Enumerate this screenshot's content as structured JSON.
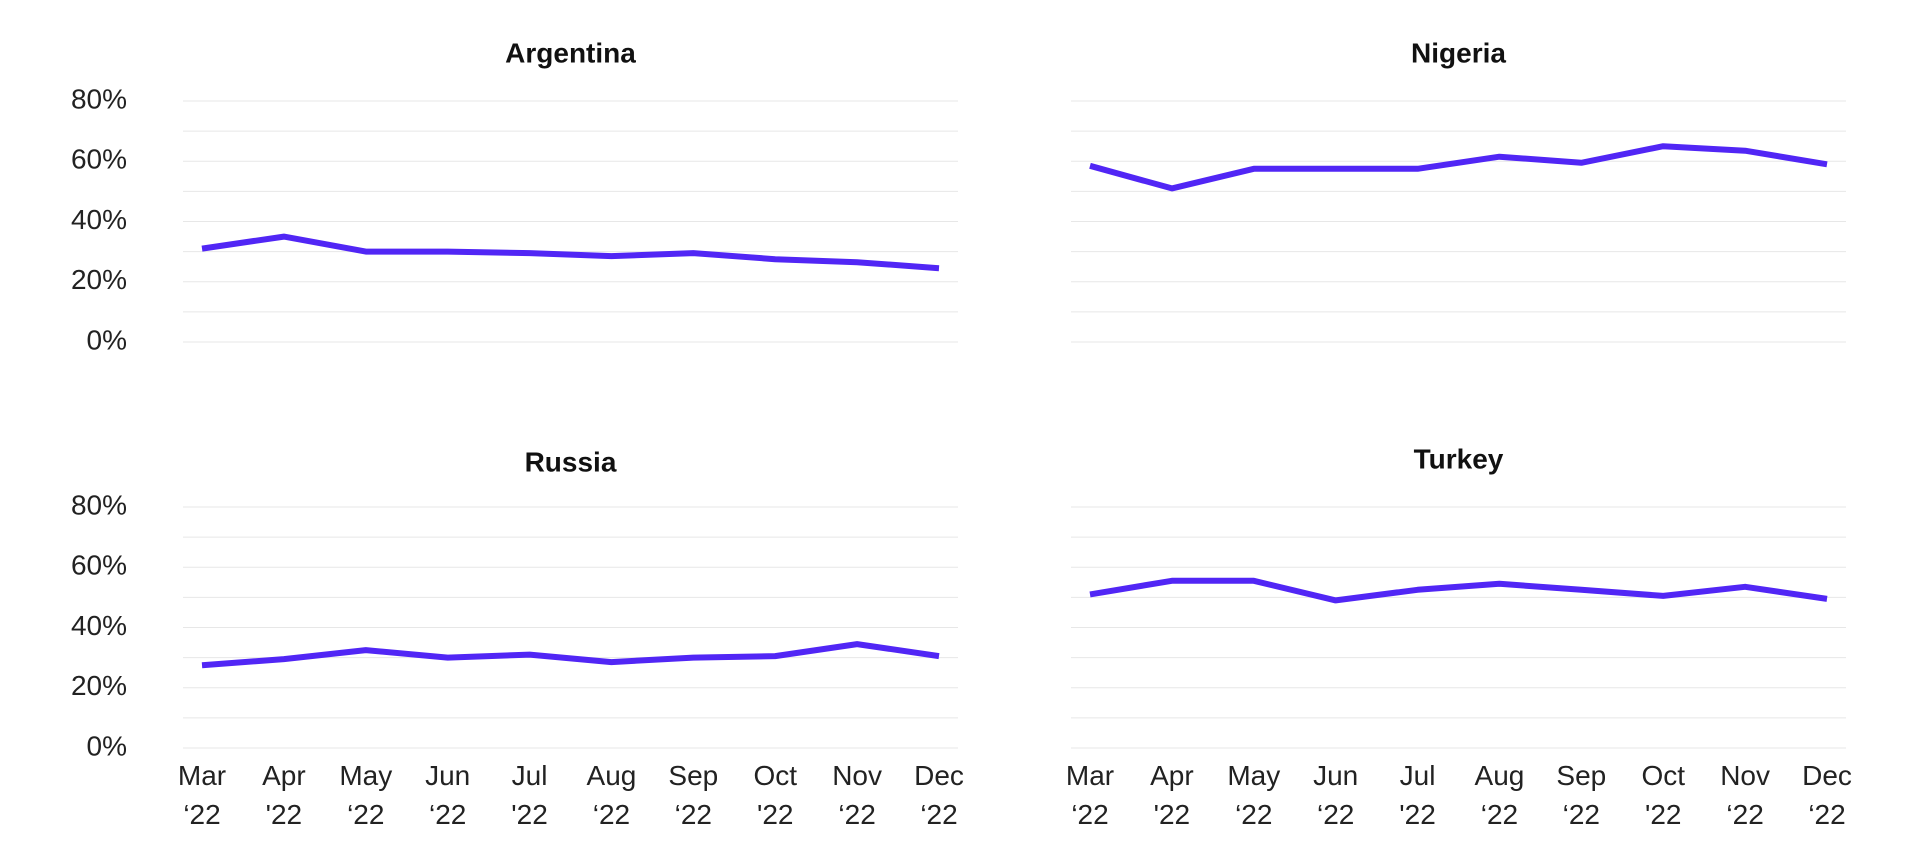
{
  "chart_data": [
    {
      "type": "line",
      "title": "Argentina",
      "categories": [
        "Mar '22",
        "Apr '22",
        "May '22",
        "Jun '22",
        "Jul '22",
        "Aug '22",
        "Sep '22",
        "Oct '22",
        "Nov '22",
        "Dec '22"
      ],
      "x_tick_labels": [
        [
          "Mar",
          "‘22"
        ],
        [
          "Apr",
          "'22"
        ],
        [
          "May",
          "‘22"
        ],
        [
          "Jun",
          "‘22"
        ],
        [
          "Jul",
          "'22"
        ],
        [
          "Aug",
          "‘22"
        ],
        [
          "Sep",
          "‘22"
        ],
        [
          "Oct",
          "'22"
        ],
        [
          "Nov",
          "‘22"
        ],
        [
          "Dec",
          "‘22"
        ]
      ],
      "values": [
        31,
        35,
        30,
        30,
        29.5,
        28.5,
        29.5,
        27.5,
        26.5,
        24.5
      ],
      "y_tick_labels": [
        "80%",
        "60%",
        "40%",
        "20%",
        "0%"
      ],
      "ylim": [
        0,
        80
      ],
      "show_x_labels": false,
      "show_y_labels": true,
      "grid": true
    },
    {
      "type": "line",
      "title": "Nigeria",
      "categories": [
        "Mar '22",
        "Apr '22",
        "May '22",
        "Jun '22",
        "Jul '22",
        "Aug '22",
        "Sep '22",
        "Oct '22",
        "Nov '22",
        "Dec '22"
      ],
      "x_tick_labels": [
        [
          "Mar",
          "‘22"
        ],
        [
          "Apr",
          "'22"
        ],
        [
          "May",
          "‘22"
        ],
        [
          "Jun",
          "‘22"
        ],
        [
          "Jul",
          "'22"
        ],
        [
          "Aug",
          "‘22"
        ],
        [
          "Sep",
          "‘22"
        ],
        [
          "Oct",
          "'22"
        ],
        [
          "Nov",
          "‘22"
        ],
        [
          "Dec",
          "‘22"
        ]
      ],
      "values": [
        58.5,
        51,
        57.5,
        57.5,
        57.5,
        61.5,
        59.5,
        65,
        63.5,
        59
      ],
      "y_tick_labels": [
        "80%",
        "60%",
        "40%",
        "20%",
        "0%"
      ],
      "ylim": [
        0,
        80
      ],
      "show_x_labels": false,
      "show_y_labels": false,
      "grid": true
    },
    {
      "type": "line",
      "title": "Russia",
      "categories": [
        "Mar '22",
        "Apr '22",
        "May '22",
        "Jun '22",
        "Jul '22",
        "Aug '22",
        "Sep '22",
        "Oct '22",
        "Nov '22",
        "Dec '22"
      ],
      "x_tick_labels": [
        [
          "Mar",
          "‘22"
        ],
        [
          "Apr",
          "'22"
        ],
        [
          "May",
          "‘22"
        ],
        [
          "Jun",
          "‘22"
        ],
        [
          "Jul",
          "'22"
        ],
        [
          "Aug",
          "‘22"
        ],
        [
          "Sep",
          "‘22"
        ],
        [
          "Oct",
          "'22"
        ],
        [
          "Nov",
          "‘22"
        ],
        [
          "Dec",
          "‘22"
        ]
      ],
      "values": [
        27.5,
        29.5,
        32.5,
        30,
        31,
        28.5,
        30,
        30.5,
        34.5,
        30.5
      ],
      "y_tick_labels": [
        "80%",
        "60%",
        "40%",
        "20%",
        "0%"
      ],
      "ylim": [
        0,
        80
      ],
      "show_x_labels": true,
      "show_y_labels": true,
      "grid": true
    },
    {
      "type": "line",
      "title": "Turkey",
      "categories": [
        "Mar '22",
        "Apr '22",
        "May '22",
        "Jun '22",
        "Jul '22",
        "Aug '22",
        "Sep '22",
        "Oct '22",
        "Nov '22",
        "Dec '22"
      ],
      "x_tick_labels": [
        [
          "Mar",
          "‘22"
        ],
        [
          "Apr",
          "'22"
        ],
        [
          "May",
          "‘22"
        ],
        [
          "Jun",
          "‘22"
        ],
        [
          "Jul",
          "'22"
        ],
        [
          "Aug",
          "‘22"
        ],
        [
          "Sep",
          "‘22"
        ],
        [
          "Oct",
          "'22"
        ],
        [
          "Nov",
          "‘22"
        ],
        [
          "Dec",
          "‘22"
        ]
      ],
      "values": [
        51,
        55.5,
        55.5,
        49,
        52.5,
        54.5,
        52.5,
        50.5,
        53.5,
        49.5
      ],
      "y_tick_labels": [
        "80%",
        "60%",
        "40%",
        "20%",
        "0%"
      ],
      "ylim": [
        0,
        80
      ],
      "show_x_labels": true,
      "show_y_labels": false,
      "grid": true
    }
  ],
  "colors": {
    "series": "#5126f5",
    "grid": "#e7e7e7",
    "text": "#222222",
    "title": "#111111",
    "background": "#ffffff"
  }
}
